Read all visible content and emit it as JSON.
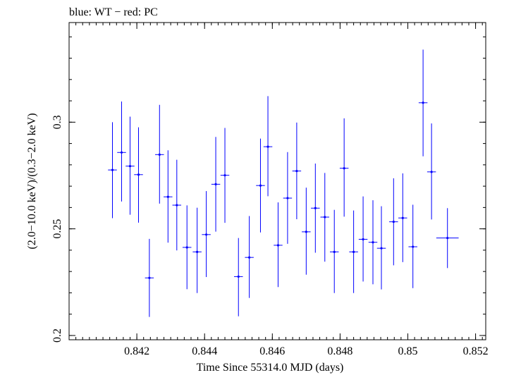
{
  "chart_data": {
    "type": "scatter",
    "title": "blue: WT − red: PC",
    "xlabel": "Time Since 55314.0 MJD (days)",
    "ylabel": "(2.0−10.0 keV)/(0.3−2.0 keV)",
    "xlim": [
      0.84,
      0.8523
    ],
    "ylim": [
      0.198,
      0.3467
    ],
    "x_major_ticks": [
      0.842,
      0.844,
      0.846,
      0.848,
      0.85,
      0.852
    ],
    "x_tick_labels": [
      "0.842",
      "0.844",
      "0.846",
      "0.848",
      "0.85",
      "0.852"
    ],
    "y_major_ticks": [
      0.2,
      0.25,
      0.3
    ],
    "y_tick_labels": [
      "0.2",
      "0.25",
      "0.3"
    ],
    "x_minor_step": 0.0002,
    "y_minor_step": 0.01,
    "grid": false,
    "series": [
      {
        "name": "WT",
        "color": "#0000ff",
        "points": [
          {
            "x": 0.84128,
            "xerr": 0.00013,
            "y": 0.2776,
            "yerr_low": 0.0226,
            "yerr_high": 0.0224
          },
          {
            "x": 0.84155,
            "xerr": 0.00013,
            "y": 0.2858,
            "yerr_low": 0.023,
            "yerr_high": 0.0239
          },
          {
            "x": 0.8418,
            "xerr": 0.00013,
            "y": 0.2794,
            "yerr_low": 0.0228,
            "yerr_high": 0.0232
          },
          {
            "x": 0.84205,
            "xerr": 0.00013,
            "y": 0.2754,
            "yerr_low": 0.0225,
            "yerr_high": 0.0222
          },
          {
            "x": 0.84237,
            "xerr": 0.00013,
            "y": 0.227,
            "yerr_low": 0.0183,
            "yerr_high": 0.0183
          },
          {
            "x": 0.84267,
            "xerr": 0.00013,
            "y": 0.2848,
            "yerr_low": 0.023,
            "yerr_high": 0.0233
          },
          {
            "x": 0.84292,
            "xerr": 0.00013,
            "y": 0.265,
            "yerr_low": 0.0215,
            "yerr_high": 0.0218
          },
          {
            "x": 0.84318,
            "xerr": 0.00013,
            "y": 0.2611,
            "yerr_low": 0.0212,
            "yerr_high": 0.0213
          },
          {
            "x": 0.84348,
            "xerr": 0.00013,
            "y": 0.2413,
            "yerr_low": 0.0196,
            "yerr_high": 0.0197
          },
          {
            "x": 0.84378,
            "xerr": 0.00013,
            "y": 0.2392,
            "yerr_low": 0.0193,
            "yerr_high": 0.0207
          },
          {
            "x": 0.84405,
            "xerr": 0.00013,
            "y": 0.2473,
            "yerr_low": 0.0199,
            "yerr_high": 0.0204
          },
          {
            "x": 0.84433,
            "xerr": 0.00013,
            "y": 0.2709,
            "yerr_low": 0.0222,
            "yerr_high": 0.0222
          },
          {
            "x": 0.8446,
            "xerr": 0.00013,
            "y": 0.2751,
            "yerr_low": 0.0223,
            "yerr_high": 0.0222
          },
          {
            "x": 0.845,
            "xerr": 0.00013,
            "y": 0.2276,
            "yerr_low": 0.0186,
            "yerr_high": 0.0181
          },
          {
            "x": 0.84532,
            "xerr": 0.00013,
            "y": 0.2366,
            "yerr_low": 0.019,
            "yerr_high": 0.0194
          },
          {
            "x": 0.84565,
            "xerr": 0.00013,
            "y": 0.2703,
            "yerr_low": 0.022,
            "yerr_high": 0.022
          },
          {
            "x": 0.84587,
            "xerr": 0.00013,
            "y": 0.2885,
            "yerr_low": 0.0232,
            "yerr_high": 0.0237
          },
          {
            "x": 0.84617,
            "xerr": 0.00013,
            "y": 0.2423,
            "yerr_low": 0.0196,
            "yerr_high": 0.0201
          },
          {
            "x": 0.84645,
            "xerr": 0.00013,
            "y": 0.2644,
            "yerr_low": 0.0214,
            "yerr_high": 0.0216
          },
          {
            "x": 0.84672,
            "xerr": 0.00013,
            "y": 0.2771,
            "yerr_low": 0.0226,
            "yerr_high": 0.0227
          },
          {
            "x": 0.847,
            "xerr": 0.00013,
            "y": 0.2486,
            "yerr_low": 0.0201,
            "yerr_high": 0.0207
          },
          {
            "x": 0.84727,
            "xerr": 0.00013,
            "y": 0.2597,
            "yerr_low": 0.0209,
            "yerr_high": 0.0209
          },
          {
            "x": 0.84755,
            "xerr": 0.00013,
            "y": 0.2555,
            "yerr_low": 0.0209,
            "yerr_high": 0.0207
          },
          {
            "x": 0.84783,
            "xerr": 0.00013,
            "y": 0.2392,
            "yerr_low": 0.0193,
            "yerr_high": 0.0197
          },
          {
            "x": 0.84812,
            "xerr": 0.00013,
            "y": 0.2784,
            "yerr_low": 0.0227,
            "yerr_high": 0.0234
          },
          {
            "x": 0.8484,
            "xerr": 0.00013,
            "y": 0.2392,
            "yerr_low": 0.0193,
            "yerr_high": 0.0194
          },
          {
            "x": 0.84868,
            "xerr": 0.00013,
            "y": 0.2451,
            "yerr_low": 0.0198,
            "yerr_high": 0.0201
          },
          {
            "x": 0.84897,
            "xerr": 0.00013,
            "y": 0.2437,
            "yerr_low": 0.0197,
            "yerr_high": 0.0197
          },
          {
            "x": 0.84922,
            "xerr": 0.00013,
            "y": 0.2409,
            "yerr_low": 0.0193,
            "yerr_high": 0.0197
          },
          {
            "x": 0.84958,
            "xerr": 0.00013,
            "y": 0.2533,
            "yerr_low": 0.0204,
            "yerr_high": 0.0204
          },
          {
            "x": 0.84985,
            "xerr": 0.00013,
            "y": 0.2551,
            "yerr_low": 0.0207,
            "yerr_high": 0.0209
          },
          {
            "x": 0.85015,
            "xerr": 0.00013,
            "y": 0.2416,
            "yerr_low": 0.0194,
            "yerr_high": 0.0197
          },
          {
            "x": 0.85045,
            "xerr": 0.00013,
            "y": 0.3091,
            "yerr_low": 0.0251,
            "yerr_high": 0.0249
          },
          {
            "x": 0.8507,
            "xerr": 0.00013,
            "y": 0.2767,
            "yerr_low": 0.0223,
            "yerr_high": 0.0227
          },
          {
            "x": 0.85117,
            "xerr": 0.00033,
            "y": 0.2457,
            "yerr_low": 0.0141,
            "yerr_high": 0.014
          }
        ]
      }
    ]
  }
}
